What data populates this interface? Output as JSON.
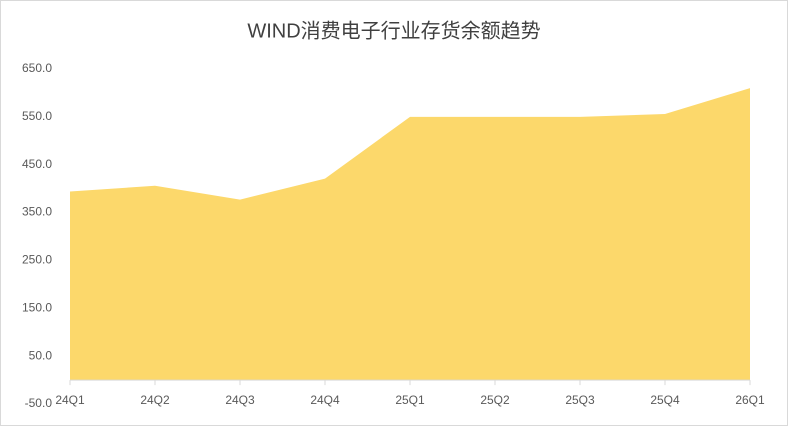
{
  "chart_data": {
    "type": "area",
    "title": "WIND消费电子行业存货余额趋势",
    "categories": [
      "24Q1",
      "24Q2",
      "24Q3",
      "24Q4",
      "25Q1",
      "25Q2",
      "25Q3",
      "25Q4",
      "26Q1"
    ],
    "values": [
      394,
      406,
      377,
      421,
      550,
      550,
      550,
      556,
      610
    ],
    "color": "#fcd86b",
    "ylim": [
      -50,
      650
    ],
    "yticks": [
      {
        "value": -50,
        "label": "-50.0"
      },
      {
        "value": 50,
        "label": "50.0"
      },
      {
        "value": 150,
        "label": "150.0"
      },
      {
        "value": 250,
        "label": "250.0"
      },
      {
        "value": 350,
        "label": "350.0"
      },
      {
        "value": 450,
        "label": "450.0"
      },
      {
        "value": 550,
        "label": "550.0"
      },
      {
        "value": 650,
        "label": "650.0"
      }
    ],
    "grid": false
  }
}
